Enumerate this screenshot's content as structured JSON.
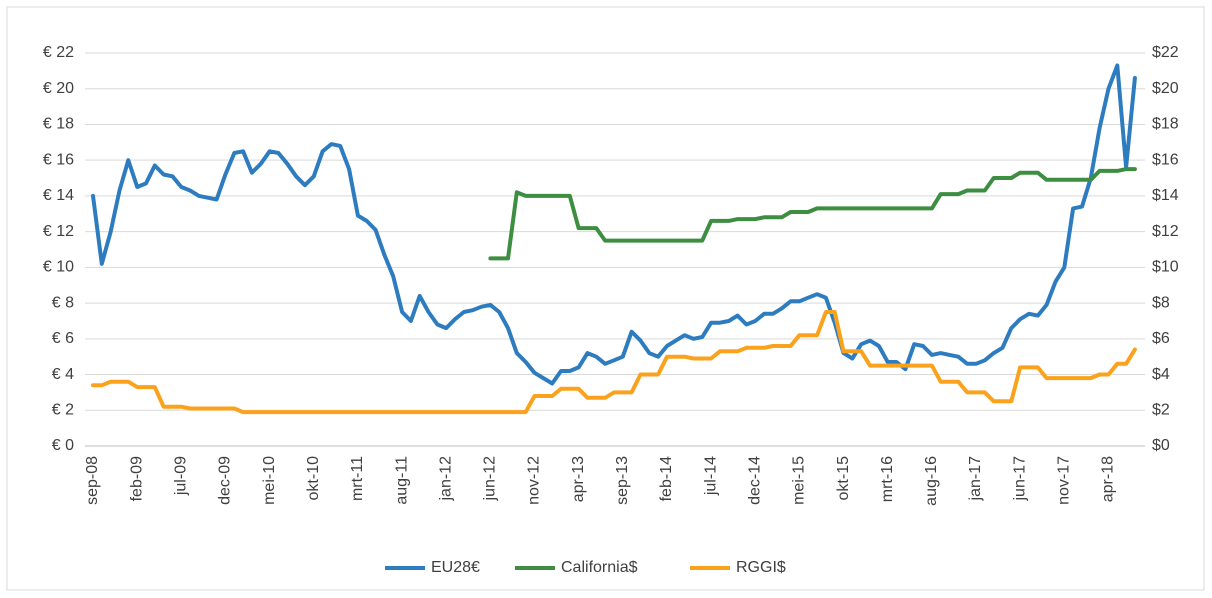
{
  "chart_data": {
    "type": "line",
    "categories": [
      "sep-08",
      null,
      null,
      null,
      null,
      "feb-09",
      null,
      null,
      null,
      null,
      "jul-09",
      null,
      null,
      null,
      null,
      "dec-09",
      null,
      null,
      null,
      null,
      "mei-10",
      null,
      null,
      null,
      null,
      "okt-10",
      null,
      null,
      null,
      null,
      "mrt-11",
      null,
      null,
      null,
      null,
      "aug-11",
      null,
      null,
      null,
      null,
      "jan-12",
      null,
      null,
      null,
      null,
      "jun-12",
      null,
      null,
      null,
      null,
      "nov-12",
      null,
      null,
      null,
      null,
      "apr-13",
      null,
      null,
      null,
      null,
      "sep-13",
      null,
      null,
      null,
      null,
      "feb-14",
      null,
      null,
      null,
      null,
      "jul-14",
      null,
      null,
      null,
      null,
      "dec-14",
      null,
      null,
      null,
      null,
      "mei-15",
      null,
      null,
      null,
      null,
      "okt-15",
      null,
      null,
      null,
      null,
      "mrt-16",
      null,
      null,
      null,
      null,
      "aug-16",
      null,
      null,
      null,
      null,
      "jan-17",
      null,
      null,
      null,
      null,
      "jun-17",
      null,
      null,
      null,
      null,
      "nov-17",
      null,
      null,
      null,
      null,
      "apr-18",
      null,
      null,
      null
    ],
    "series": [
      {
        "name": "EU28€",
        "color": "#2e7cc0",
        "axis": "y",
        "values": [
          14.0,
          10.2,
          12.0,
          14.3,
          16.0,
          14.5,
          14.7,
          15.7,
          15.2,
          15.1,
          14.5,
          14.3,
          14.0,
          13.9,
          13.8,
          15.2,
          16.4,
          16.5,
          15.3,
          15.8,
          16.5,
          16.4,
          15.8,
          15.1,
          14.6,
          15.1,
          16.5,
          16.9,
          16.8,
          15.5,
          12.9,
          12.6,
          12.1,
          10.7,
          9.5,
          7.5,
          7.0,
          8.4,
          7.5,
          6.8,
          6.6,
          7.1,
          7.5,
          7.6,
          7.8,
          7.9,
          7.5,
          6.6,
          5.2,
          4.7,
          4.1,
          3.8,
          3.5,
          4.2,
          4.2,
          4.4,
          5.2,
          5.0,
          4.6,
          4.8,
          5.0,
          6.4,
          5.9,
          5.2,
          5.0,
          5.6,
          5.9,
          6.2,
          6.0,
          6.1,
          6.9,
          6.9,
          7.0,
          7.3,
          6.8,
          7.0,
          7.4,
          7.4,
          7.7,
          8.1,
          8.1,
          8.3,
          8.5,
          8.3,
          6.9,
          5.2,
          4.9,
          5.7,
          5.9,
          5.6,
          4.7,
          4.7,
          4.3,
          5.7,
          5.6,
          5.1,
          5.2,
          5.1,
          5.0,
          4.6,
          4.6,
          4.8,
          5.2,
          5.5,
          6.6,
          7.1,
          7.4,
          7.3,
          7.9,
          9.2,
          10.0,
          13.3,
          13.4,
          15.0,
          17.8,
          20.0,
          21.3,
          15.6,
          20.6
        ]
      },
      {
        "name": "California$",
        "color": "#3e8e41",
        "axis": "y2",
        "values": [
          null,
          null,
          null,
          null,
          null,
          null,
          null,
          null,
          null,
          null,
          null,
          null,
          null,
          null,
          null,
          null,
          null,
          null,
          null,
          null,
          null,
          null,
          null,
          null,
          null,
          null,
          null,
          null,
          null,
          null,
          null,
          null,
          null,
          null,
          null,
          null,
          null,
          null,
          null,
          null,
          null,
          null,
          null,
          null,
          null,
          10.5,
          10.5,
          10.5,
          14.2,
          14.0,
          14.0,
          14.0,
          14.0,
          14.0,
          14.0,
          12.2,
          12.2,
          12.2,
          11.5,
          11.5,
          11.5,
          11.5,
          11.5,
          11.5,
          11.5,
          11.5,
          11.5,
          11.5,
          11.5,
          11.5,
          12.6,
          12.6,
          12.6,
          12.7,
          12.7,
          12.7,
          12.8,
          12.8,
          12.8,
          13.1,
          13.1,
          13.1,
          13.3,
          13.3,
          13.3,
          13.3,
          13.3,
          13.3,
          13.3,
          13.3,
          13.3,
          13.3,
          13.3,
          13.3,
          13.3,
          13.3,
          14.1,
          14.1,
          14.1,
          14.3,
          14.3,
          14.3,
          15.0,
          15.0,
          15.0,
          15.3,
          15.3,
          15.3,
          14.9,
          14.9,
          14.9,
          14.9,
          14.9,
          14.9,
          15.4,
          15.4,
          15.4,
          15.5,
          15.5
        ]
      },
      {
        "name": "RGGI$",
        "color": "#fba21c",
        "axis": "y2",
        "values": [
          3.4,
          3.4,
          3.6,
          3.6,
          3.6,
          3.3,
          3.3,
          3.3,
          2.2,
          2.2,
          2.2,
          2.1,
          2.1,
          2.1,
          2.1,
          2.1,
          2.1,
          1.9,
          1.9,
          1.9,
          1.9,
          1.9,
          1.9,
          1.9,
          1.9,
          1.9,
          1.9,
          1.9,
          1.9,
          1.9,
          1.9,
          1.9,
          1.9,
          1.9,
          1.9,
          1.9,
          1.9,
          1.9,
          1.9,
          1.9,
          1.9,
          1.9,
          1.9,
          1.9,
          1.9,
          1.9,
          1.9,
          1.9,
          1.9,
          1.9,
          2.8,
          2.8,
          2.8,
          3.2,
          3.2,
          3.2,
          2.7,
          2.7,
          2.7,
          3.0,
          3.0,
          3.0,
          4.0,
          4.0,
          4.0,
          5.0,
          5.0,
          5.0,
          4.9,
          4.9,
          4.9,
          5.3,
          5.3,
          5.3,
          5.5,
          5.5,
          5.5,
          5.6,
          5.6,
          5.6,
          6.2,
          6.2,
          6.2,
          7.5,
          7.5,
          5.3,
          5.3,
          5.3,
          4.5,
          4.5,
          4.5,
          4.5,
          4.5,
          4.5,
          4.5,
          4.5,
          3.6,
          3.6,
          3.6,
          3.0,
          3.0,
          3.0,
          2.5,
          2.5,
          2.5,
          4.4,
          4.4,
          4.4,
          3.8,
          3.8,
          3.8,
          3.8,
          3.8,
          3.8,
          4.0,
          4.0,
          4.6,
          4.6,
          5.4
        ]
      }
    ],
    "ylim": [
      0,
      22
    ],
    "yticks": [
      {
        "value": 0,
        "label": "€ 0"
      },
      {
        "value": 2,
        "label": "€ 2"
      },
      {
        "value": 4,
        "label": "€ 4"
      },
      {
        "value": 6,
        "label": "€ 6"
      },
      {
        "value": 8,
        "label": "€ 8"
      },
      {
        "value": 10,
        "label": "€ 10"
      },
      {
        "value": 12,
        "label": "€ 12"
      },
      {
        "value": 14,
        "label": "€ 14"
      },
      {
        "value": 16,
        "label": "€ 16"
      },
      {
        "value": 18,
        "label": "€ 18"
      },
      {
        "value": 20,
        "label": "€ 20"
      },
      {
        "value": 22,
        "label": "€ 22"
      }
    ],
    "y2lim": [
      0,
      22
    ],
    "y2ticks": [
      {
        "value": 0,
        "label": "$0"
      },
      {
        "value": 2,
        "label": "$2"
      },
      {
        "value": 4,
        "label": "$4"
      },
      {
        "value": 6,
        "label": "$6"
      },
      {
        "value": 8,
        "label": "$8"
      },
      {
        "value": 10,
        "label": "$10"
      },
      {
        "value": 12,
        "label": "$12"
      },
      {
        "value": 14,
        "label": "$14"
      },
      {
        "value": 16,
        "label": "$16"
      },
      {
        "value": 18,
        "label": "$18"
      },
      {
        "value": 20,
        "label": "$20"
      },
      {
        "value": 22,
        "label": "$22"
      }
    ],
    "grid": true,
    "legend": "bottom"
  }
}
